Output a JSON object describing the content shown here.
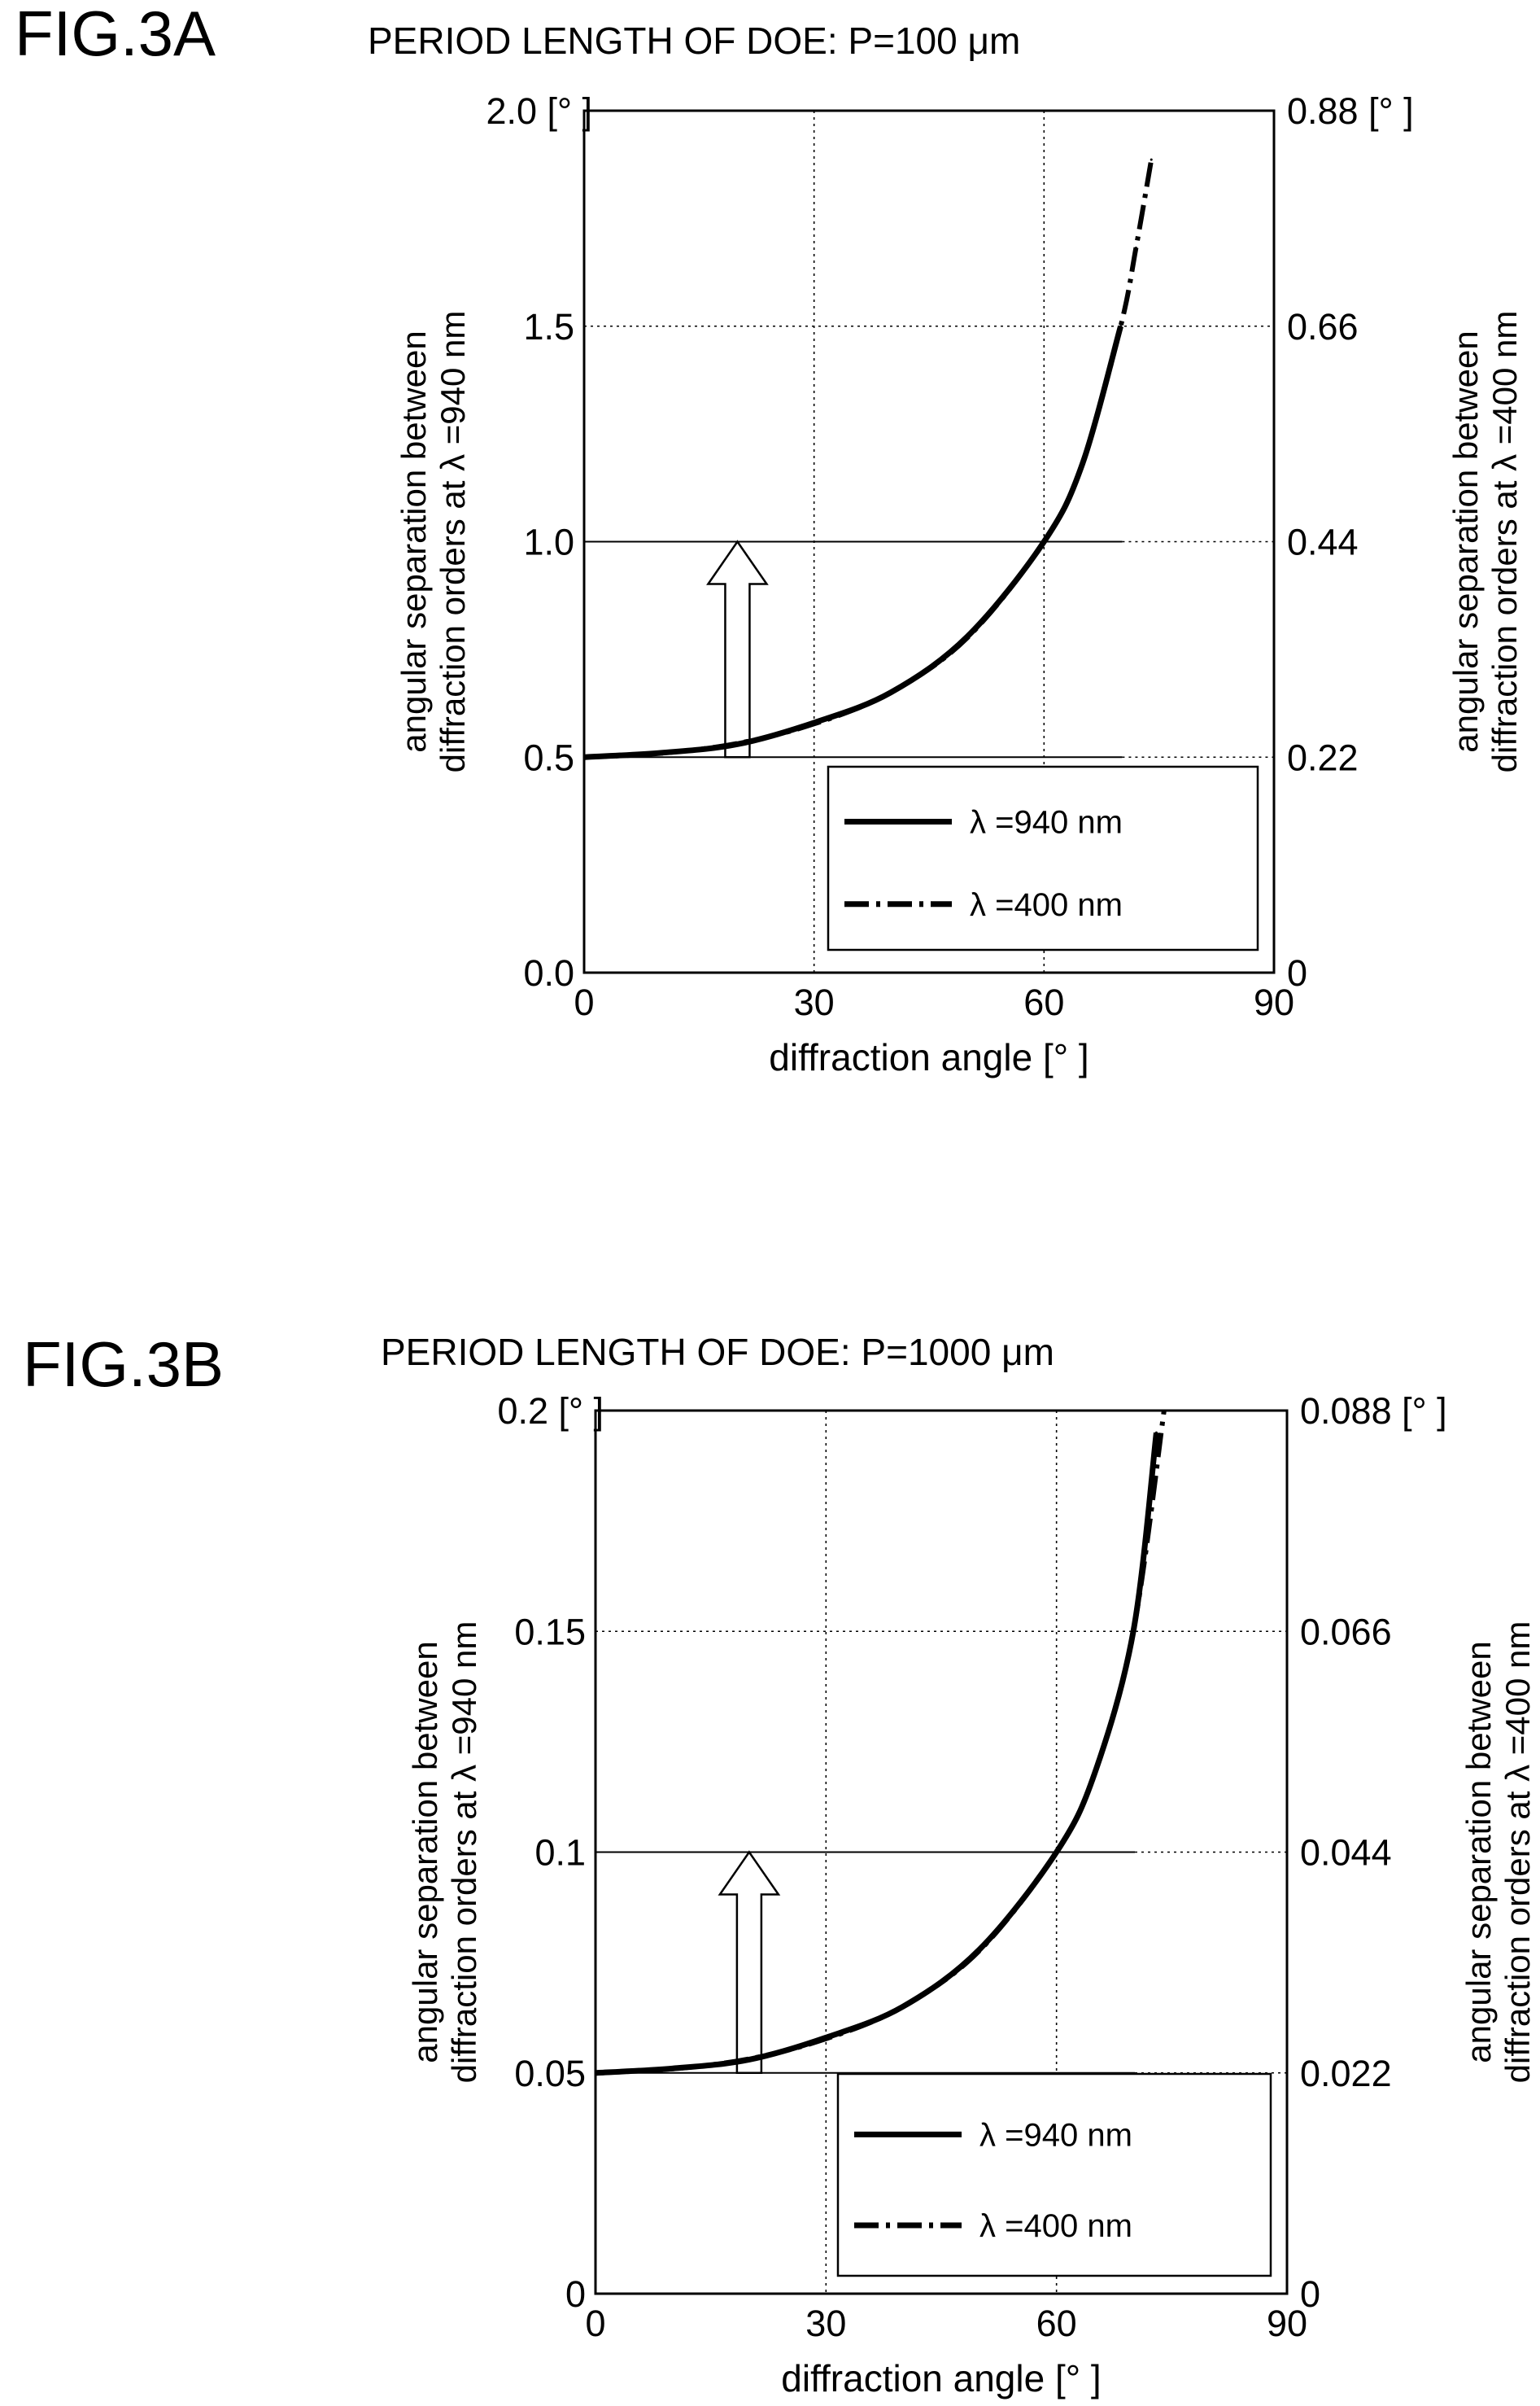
{
  "chart_data": [
    {
      "figure_label": "FIG.3A",
      "title": "PERIOD LENGTH OF DOE:  P=100 μm",
      "type": "line",
      "xlabel": "diffraction angle [°  ]",
      "ylabel_left": [
        "angular separation between",
        "diffraction orders at  λ =940 nm"
      ],
      "ylabel_right": [
        "angular separation between",
        "diffraction orders at  λ =400 nm"
      ],
      "xlim": [
        0,
        90
      ],
      "ylim_left": [
        0,
        2.0
      ],
      "ylim_right": [
        0,
        0.88
      ],
      "x_ticks": [
        "0",
        "30",
        "60",
        "90"
      ],
      "y_left_ticks": [
        "0.0",
        "0.5",
        "1.0",
        "1.5",
        "2.0 [°  ]"
      ],
      "y_right_ticks": [
        "0",
        "0.22",
        "0.44",
        "0.66",
        "0.88 [°  ]"
      ],
      "grid": true,
      "legend_position": "lower-right",
      "annotation_arrow": {
        "x": 20,
        "y_from": 0.5,
        "y_to": 1.0
      },
      "series": [
        {
          "name": "λ =940 nm",
          "style": "solid",
          "x": [
            0,
            10,
            20,
            30,
            40,
            50,
            60,
            65,
            70
          ],
          "y": [
            0.5,
            0.51,
            0.53,
            0.58,
            0.65,
            0.78,
            1.0,
            1.18,
            1.5
          ]
        },
        {
          "name": "λ =400 nm",
          "style": "dashdot",
          "x": [
            0,
            10,
            20,
            30,
            40,
            50,
            60,
            65,
            70,
            72,
            74
          ],
          "y": [
            0.22,
            0.224,
            0.234,
            0.254,
            0.286,
            0.342,
            0.44,
            0.52,
            0.66,
            0.74,
            0.83
          ]
        }
      ]
    },
    {
      "figure_label": "FIG.3B",
      "title": "PERIOD LENGTH OF DOE:  P=1000 μm",
      "type": "line",
      "xlabel": "diffraction angle [°  ]",
      "ylabel_left": [
        "angular separation between",
        "diffraction orders at  λ =940 nm"
      ],
      "ylabel_right": [
        "angular separation between",
        "diffraction orders at  λ =400 nm"
      ],
      "xlim": [
        0,
        90
      ],
      "ylim_left": [
        0,
        0.2
      ],
      "ylim_right": [
        0,
        0.088
      ],
      "x_ticks": [
        "0",
        "30",
        "60",
        "90"
      ],
      "y_left_ticks": [
        "0",
        "0.05",
        "0.1",
        "0.15",
        "0.2 [°  ]"
      ],
      "y_right_ticks": [
        "0",
        "0.022",
        "0.044",
        "0.066",
        "0.088 [°  ]"
      ],
      "grid": true,
      "legend_position": "lower-right",
      "annotation_arrow": {
        "x": 20,
        "y_from": 0.05,
        "y_to": 0.1
      },
      "series": [
        {
          "name": "λ =940 nm",
          "style": "solid",
          "x": [
            0,
            10,
            20,
            30,
            40,
            50,
            60,
            65,
            70,
            73
          ],
          "y": [
            0.05,
            0.051,
            0.053,
            0.058,
            0.065,
            0.078,
            0.1,
            0.118,
            0.15,
            0.195
          ]
        },
        {
          "name": "λ =400 nm",
          "style": "dashdot",
          "x": [
            0,
            10,
            20,
            30,
            40,
            50,
            60,
            65,
            70,
            74
          ],
          "y": [
            0.022,
            0.0224,
            0.0234,
            0.0254,
            0.0286,
            0.0342,
            0.044,
            0.052,
            0.066,
            0.088
          ]
        }
      ]
    }
  ]
}
